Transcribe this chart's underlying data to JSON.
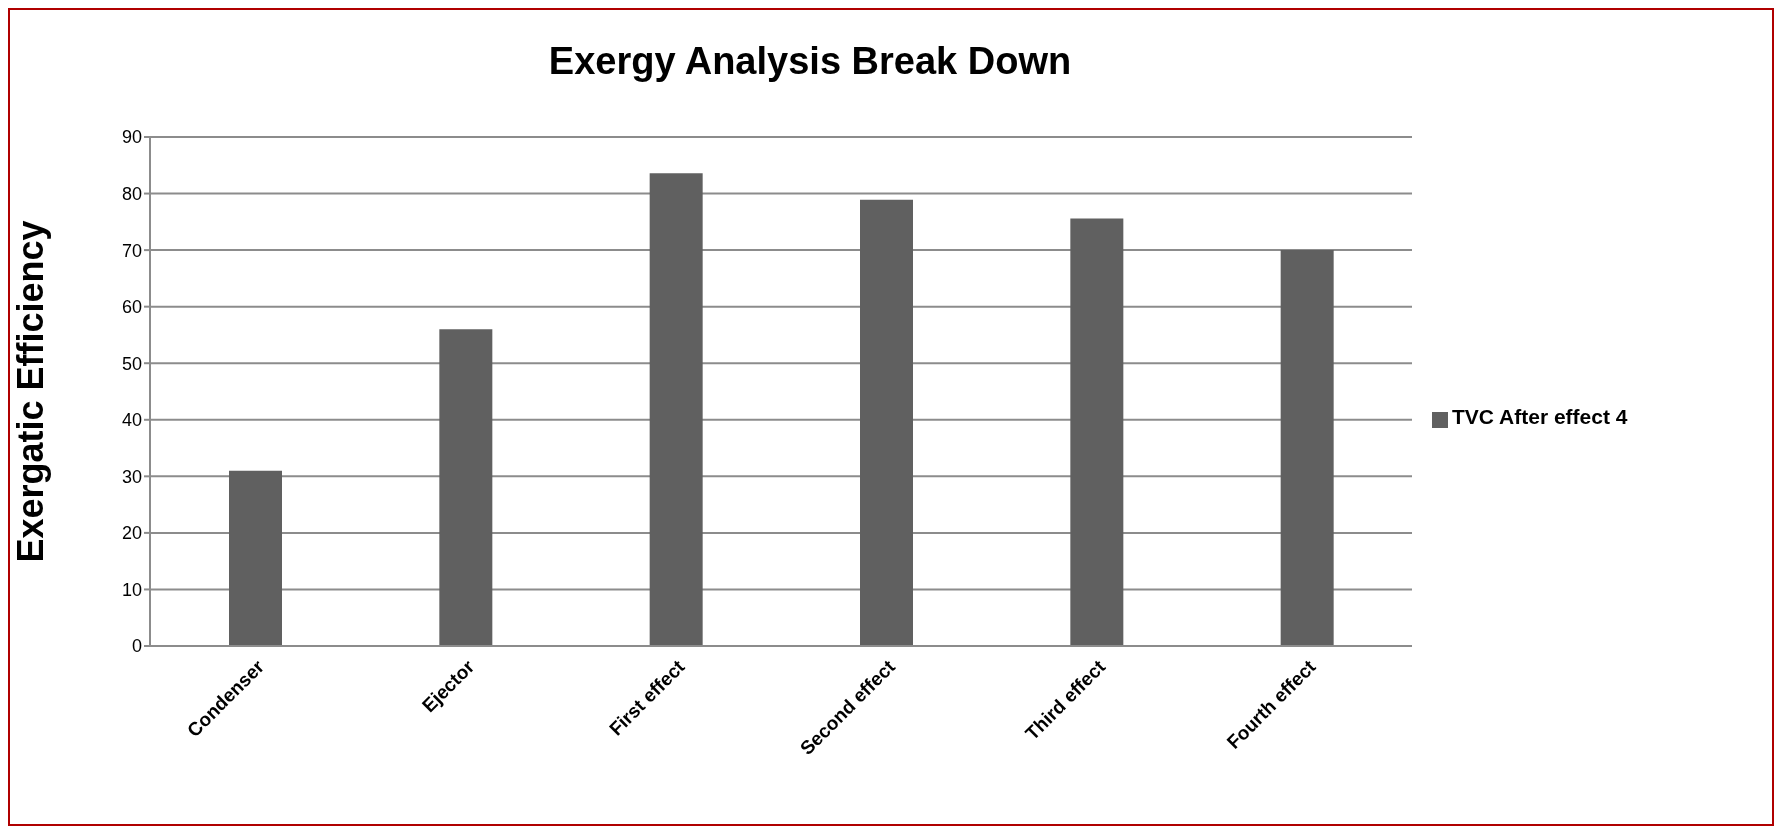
{
  "chart_data": {
    "type": "bar",
    "title": "Exergy Analysis Break Down",
    "ylabel": "Exergatic Efficiency",
    "categories": [
      "Condenser",
      "Ejector",
      "First effect",
      "Second effect",
      "Third effect",
      "Fourth  effect"
    ],
    "series": [
      {
        "name": "TVC After effect 4",
        "color": "#606060",
        "values": [
          31,
          56,
          83.6,
          78.9,
          75.6,
          70
        ]
      }
    ],
    "ylim": [
      0,
      90
    ],
    "yticks": [
      0,
      10,
      20,
      30,
      40,
      50,
      60,
      70,
      80,
      90
    ],
    "grid": "y",
    "legend": "right"
  }
}
